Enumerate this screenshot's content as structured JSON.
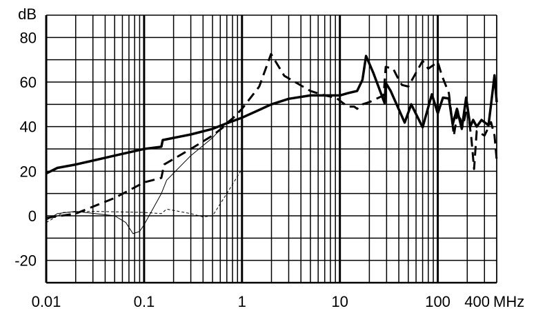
{
  "chart_data": {
    "type": "line",
    "title": "",
    "ylabel": "dB",
    "xlabel": "MHz",
    "xscale": "log",
    "xlim": [
      0.01,
      400
    ],
    "ylim": [
      -30,
      90
    ],
    "grid": true,
    "x_ticks": [
      0.01,
      0.1,
      1,
      10,
      100,
      400
    ],
    "x_tick_labels": [
      "0.01",
      "0.1",
      "1",
      "10",
      "100",
      "400"
    ],
    "y_ticks": [
      -20,
      0,
      20,
      40,
      60,
      80
    ],
    "y_tick_labels": [
      "-20",
      "0",
      "20",
      "40",
      "60",
      "80"
    ],
    "series": [
      {
        "style": "thick-solid",
        "points": [
          [
            0.01,
            19
          ],
          [
            0.013,
            21.5
          ],
          [
            0.02,
            23
          ],
          [
            0.05,
            27
          ],
          [
            0.1,
            30
          ],
          [
            0.15,
            31
          ],
          [
            0.155,
            34
          ],
          [
            0.3,
            36.5
          ],
          [
            0.5,
            39
          ],
          [
            0.7,
            41.5
          ],
          [
            1,
            44
          ],
          [
            2,
            50
          ],
          [
            3,
            52.5
          ],
          [
            5,
            54
          ],
          [
            10,
            54
          ],
          [
            12,
            55
          ],
          [
            15,
            56
          ],
          [
            17,
            61
          ],
          [
            18.5,
            71.7
          ],
          [
            22,
            64
          ],
          [
            28.7,
            50.5
          ],
          [
            29.4,
            59.7
          ],
          [
            33,
            56
          ],
          [
            45.9,
            41.8
          ],
          [
            53.6,
            50
          ],
          [
            70,
            39.7
          ],
          [
            87,
            54.5
          ],
          [
            100,
            46
          ],
          [
            113,
            53
          ],
          [
            130,
            52.6
          ],
          [
            142,
            41
          ],
          [
            157,
            48
          ],
          [
            176,
            39
          ],
          [
            195,
            53
          ],
          [
            215,
            40
          ],
          [
            230,
            43
          ],
          [
            250,
            40
          ],
          [
            280,
            43
          ],
          [
            330,
            40.6
          ],
          [
            350,
            50
          ],
          [
            380,
            63
          ],
          [
            400,
            51
          ]
        ]
      },
      {
        "style": "thick-dashed",
        "points": [
          [
            0.01,
            -1
          ],
          [
            0.02,
            1
          ],
          [
            0.05,
            8
          ],
          [
            0.1,
            15
          ],
          [
            0.15,
            17
          ],
          [
            0.16,
            23
          ],
          [
            0.3,
            30
          ],
          [
            0.5,
            36
          ],
          [
            0.7,
            41
          ],
          [
            1,
            48
          ],
          [
            1.5,
            58
          ],
          [
            1.98,
            72.6
          ],
          [
            2.7,
            62.8
          ],
          [
            5,
            56
          ],
          [
            7,
            54
          ],
          [
            9.1,
            53
          ],
          [
            12,
            49
          ],
          [
            14,
            49
          ],
          [
            15,
            48
          ],
          [
            17,
            50
          ],
          [
            20,
            51
          ],
          [
            25,
            53
          ],
          [
            28,
            54
          ],
          [
            29.4,
            66.8
          ],
          [
            35,
            66
          ],
          [
            40,
            61
          ],
          [
            43,
            58.7
          ],
          [
            50,
            58
          ],
          [
            70,
            69.5
          ],
          [
            80,
            66
          ],
          [
            100,
            69
          ],
          [
            110,
            63
          ],
          [
            130,
            55
          ],
          [
            146,
            36
          ],
          [
            160,
            47
          ],
          [
            180,
            40
          ],
          [
            200,
            49
          ],
          [
            220,
            35
          ],
          [
            235,
            21
          ],
          [
            250,
            38
          ],
          [
            300,
            36
          ],
          [
            350,
            42
          ],
          [
            380,
            36
          ],
          [
            400,
            25
          ]
        ]
      },
      {
        "style": "thin-solid",
        "points": [
          [
            0.01,
            -2
          ],
          [
            0.013,
            1
          ],
          [
            0.02,
            2
          ],
          [
            0.05,
            0
          ],
          [
            0.065,
            -3
          ],
          [
            0.077,
            -8
          ],
          [
            0.09,
            -7
          ],
          [
            0.1,
            -4
          ],
          [
            0.15,
            10
          ],
          [
            0.17,
            16
          ],
          [
            0.3,
            27
          ],
          [
            0.5,
            35
          ],
          [
            0.7,
            42
          ],
          [
            0.8,
            44
          ]
        ]
      },
      {
        "style": "thin-dashed",
        "points": [
          [
            0.01,
            -3
          ],
          [
            0.015,
            1.5
          ],
          [
            0.03,
            2
          ],
          [
            0.1,
            1.5
          ],
          [
            0.15,
            1
          ],
          [
            0.17,
            3
          ],
          [
            0.3,
            1
          ],
          [
            0.4,
            -0.5
          ],
          [
            0.5,
            0
          ],
          [
            0.7,
            10
          ],
          [
            1,
            21
          ]
        ]
      }
    ]
  }
}
